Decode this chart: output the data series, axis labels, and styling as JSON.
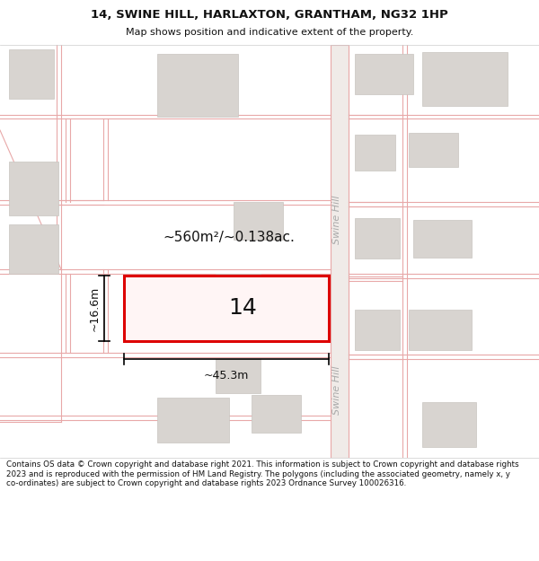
{
  "title": "14, SWINE HILL, HARLAXTON, GRANTHAM, NG32 1HP",
  "subtitle": "Map shows position and indicative extent of the property.",
  "footer": "Contains OS data © Crown copyright and database right 2021. This information is subject to Crown copyright and database rights 2023 and is reproduced with the permission of HM Land Registry. The polygons (including the associated geometry, namely x, y co-ordinates) are subject to Crown copyright and database rights 2023 Ordnance Survey 100026316.",
  "area_text": "~560m²/~0.138ac.",
  "label_14": "14",
  "dim_width": "~45.3m",
  "dim_height": "~16.6m",
  "road_label1": "Swine Hill",
  "road_label2": "Swine Hill",
  "map_bg": "#f7f4f2",
  "road_line_color": "#e8a8a8",
  "building_fill": "#d8d4d0",
  "building_edge": "#c8c4c0",
  "plot_edge": "#dd0000",
  "plot_fill": "#fff5f5",
  "road_text_color": "#aaaaaa",
  "dim_color": "#111111",
  "title_color": "#111111",
  "footer_bg": "#ffffff",
  "map_border": "#cccccc"
}
